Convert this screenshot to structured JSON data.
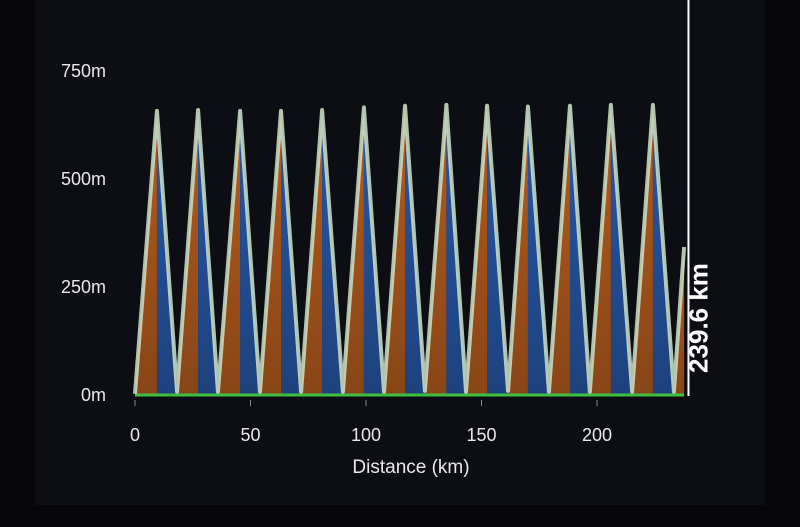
{
  "chart_data": {
    "type": "area",
    "x_label": "Distance (km)",
    "x": [
      0,
      9.5,
      18.2,
      27.3,
      35.9,
      45.5,
      54.1,
      63.2,
      71.9,
      81,
      90,
      99.1,
      107.8,
      116.9,
      125.5,
      134.8,
      143.3,
      152.4,
      161.5,
      170.1,
      179.2,
      188.3,
      196.9,
      206,
      215.2,
      224.2,
      233.3,
      237.7
    ],
    "values": [
      5,
      660,
      10,
      662,
      10,
      660,
      10,
      660,
      10,
      662,
      10,
      668,
      10,
      672,
      12,
      674,
      10,
      672,
      12,
      670,
      10,
      672,
      10,
      674,
      10,
      674,
      10,
      345
    ],
    "climb_color": "#c8651f",
    "descent_color": "#2a5fb6",
    "line_color": "#cfe3c8",
    "xlim": [
      0,
      240
    ],
    "ylim": [
      0,
      800
    ],
    "xticks": [
      0,
      50,
      100,
      150,
      200
    ],
    "yticks": [
      {
        "value": 0,
        "label": "0m"
      },
      {
        "value": 250,
        "label": "250m"
      },
      {
        "value": 500,
        "label": "500m"
      },
      {
        "value": 750,
        "label": "750m"
      }
    ],
    "marker": {
      "value": 239.6,
      "label": "239.6 km"
    }
  }
}
